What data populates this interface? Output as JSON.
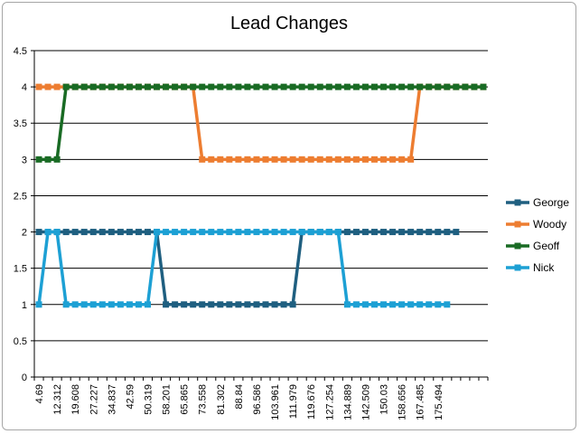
{
  "chart_data": {
    "type": "line",
    "title": "Lead Changes",
    "xlabel": "",
    "ylabel": "",
    "ylim": [
      0,
      4.5
    ],
    "yticks": [
      "0",
      "0.5",
      "1",
      "1.5",
      "2",
      "2.5",
      "3",
      "3.5",
      "4",
      "4.5"
    ],
    "x_tick_labels": [
      "4.69",
      "12.312",
      "19.608",
      "27.227",
      "34.837",
      "42.59",
      "50.319",
      "58.201",
      "65.865",
      "73.558",
      "81.302",
      "88.84",
      "96.586",
      "103.961",
      "111.979",
      "119.676",
      "127.254",
      "134.889",
      "142.509",
      "150.03",
      "158.656",
      "167.485",
      "175.494"
    ],
    "grid": "horizontal",
    "legend_position": "right",
    "series": [
      {
        "name": "George",
        "color": "#1f5f80",
        "values": [
          2,
          2,
          2,
          2,
          2,
          2,
          2,
          2,
          2,
          2,
          2,
          2,
          2,
          2,
          1,
          1,
          1,
          1,
          1,
          1,
          1,
          1,
          1,
          1,
          1,
          1,
          1,
          1,
          1,
          2,
          2,
          2,
          2,
          2,
          2,
          2,
          2,
          2,
          2,
          2,
          2,
          2,
          2,
          2,
          2,
          2,
          2
        ]
      },
      {
        "name": "Woody",
        "color": "#ed7d31",
        "values": [
          4,
          4,
          4,
          4,
          4,
          4,
          4,
          4,
          4,
          4,
          4,
          4,
          4,
          4,
          4,
          4,
          4,
          4,
          3,
          3,
          3,
          3,
          3,
          3,
          3,
          3,
          3,
          3,
          3,
          3,
          3,
          3,
          3,
          3,
          3,
          3,
          3,
          3,
          3,
          3,
          3,
          3,
          4,
          4,
          4,
          4,
          4,
          4,
          4,
          4
        ]
      },
      {
        "name": "Geoff",
        "color": "#196b24",
        "values": [
          3,
          3,
          3,
          4,
          4,
          4,
          4,
          4,
          4,
          4,
          4,
          4,
          4,
          4,
          4,
          4,
          4,
          4,
          4,
          4,
          4,
          4,
          4,
          4,
          4,
          4,
          4,
          4,
          4,
          4,
          4,
          4,
          4,
          4,
          4,
          4,
          4,
          4,
          4,
          4,
          4,
          4,
          4,
          4,
          4,
          4,
          4,
          4,
          4,
          4
        ]
      },
      {
        "name": "Nick",
        "color": "#1da0d4",
        "values": [
          1,
          2,
          2,
          1,
          1,
          1,
          1,
          1,
          1,
          1,
          1,
          1,
          1,
          2,
          2,
          2,
          2,
          2,
          2,
          2,
          2,
          2,
          2,
          2,
          2,
          2,
          2,
          2,
          2,
          2,
          2,
          2,
          2,
          2,
          1,
          1,
          1,
          1,
          1,
          1,
          1,
          1,
          1,
          1,
          1,
          1
        ]
      }
    ]
  }
}
